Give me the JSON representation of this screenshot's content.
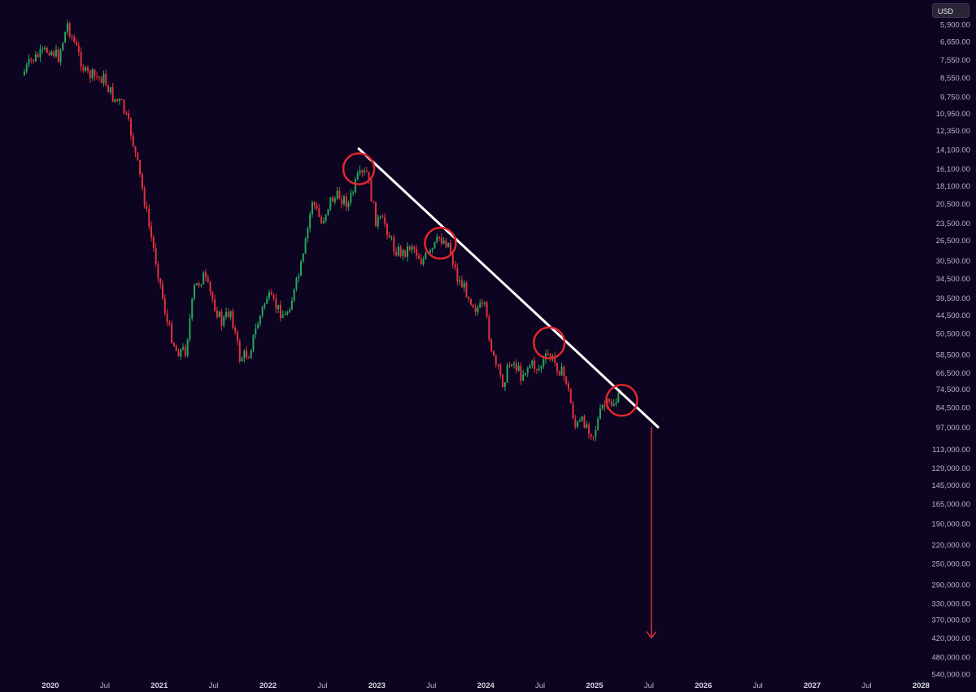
{
  "currency": "USD",
  "chart_data": {
    "type": "candlestick",
    "y_scale": "log",
    "y_inverted": true,
    "y_ticks": [
      "5,900.00",
      "6,650.00",
      "7,550.00",
      "8,550.00",
      "9,750.00",
      "10,950.00",
      "12,350.00",
      "14,100.00",
      "16,100.00",
      "18,100.00",
      "20,500.00",
      "23,500.00",
      "26,500.00",
      "30,500.00",
      "34,500.00",
      "39,500.00",
      "44,500.00",
      "50,500.00",
      "58,500.00",
      "66,500.00",
      "74,500.00",
      "84,500.00",
      "97,000.00",
      "113,000.00",
      "129,000.00",
      "145,000.00",
      "165,000.00",
      "190,000.00",
      "220,000.00",
      "250,000.00",
      "290,000.00",
      "330,000.00",
      "370,000.00",
      "420,000.00",
      "480,000.00",
      "540,000.00"
    ],
    "x_ticks": [
      {
        "label": "2020",
        "date": "2020-01",
        "major": true
      },
      {
        "label": "Jul",
        "date": "2020-07",
        "major": false
      },
      {
        "label": "2021",
        "date": "2021-01",
        "major": true
      },
      {
        "label": "Jul",
        "date": "2021-07",
        "major": false
      },
      {
        "label": "2022",
        "date": "2022-01",
        "major": true
      },
      {
        "label": "Jul",
        "date": "2022-07",
        "major": false
      },
      {
        "label": "2023",
        "date": "2023-01",
        "major": true
      },
      {
        "label": "Jul",
        "date": "2023-07",
        "major": false
      },
      {
        "label": "2024",
        "date": "2024-01",
        "major": true
      },
      {
        "label": "Jul",
        "date": "2024-07",
        "major": false
      },
      {
        "label": "2025",
        "date": "2025-01",
        "major": true
      },
      {
        "label": "Jul",
        "date": "2025-07",
        "major": false
      },
      {
        "label": "2026",
        "date": "2026-01",
        "major": true
      },
      {
        "label": "Jul",
        "date": "2026-07",
        "major": false
      },
      {
        "label": "2027",
        "date": "2027-01",
        "major": true
      },
      {
        "label": "Jul",
        "date": "2027-07",
        "major": false
      },
      {
        "label": "2028",
        "date": "2028-01",
        "major": true
      }
    ],
    "price_path": [
      {
        "date": "2019-10",
        "price": 8400
      },
      {
        "date": "2019-11",
        "price": 7600
      },
      {
        "date": "2019-12",
        "price": 7300
      },
      {
        "date": "2020-01",
        "price": 7000
      },
      {
        "date": "2020-02",
        "price": 7400
      },
      {
        "date": "2020-03",
        "price": 5900
      },
      {
        "date": "2020-04",
        "price": 7000
      },
      {
        "date": "2020-05",
        "price": 8300
      },
      {
        "date": "2020-06",
        "price": 8500
      },
      {
        "date": "2020-07",
        "price": 8600
      },
      {
        "date": "2020-08",
        "price": 9800
      },
      {
        "date": "2020-09",
        "price": 10300
      },
      {
        "date": "2020-10",
        "price": 12500
      },
      {
        "date": "2020-11",
        "price": 17000
      },
      {
        "date": "2020-12",
        "price": 24000
      },
      {
        "date": "2021-01",
        "price": 33000
      },
      {
        "date": "2021-02",
        "price": 47000
      },
      {
        "date": "2021-03",
        "price": 57000
      },
      {
        "date": "2021-04",
        "price": 57000
      },
      {
        "date": "2021-05",
        "price": 37000
      },
      {
        "date": "2021-06",
        "price": 34000
      },
      {
        "date": "2021-07",
        "price": 40000
      },
      {
        "date": "2021-08",
        "price": 47000
      },
      {
        "date": "2021-09",
        "price": 43000
      },
      {
        "date": "2021-10",
        "price": 60000
      },
      {
        "date": "2021-11",
        "price": 58000
      },
      {
        "date": "2021-12",
        "price": 47000
      },
      {
        "date": "2022-01",
        "price": 39000
      },
      {
        "date": "2022-02",
        "price": 42000
      },
      {
        "date": "2022-03",
        "price": 45000
      },
      {
        "date": "2022-04",
        "price": 38000
      },
      {
        "date": "2022-05",
        "price": 30000
      },
      {
        "date": "2022-06",
        "price": 20000
      },
      {
        "date": "2022-07",
        "price": 23500
      },
      {
        "date": "2022-08",
        "price": 20000
      },
      {
        "date": "2022-09",
        "price": 19500
      },
      {
        "date": "2022-10",
        "price": 20500
      },
      {
        "date": "2022-11",
        "price": 17200
      },
      {
        "date": "2022-12",
        "price": 16600
      },
      {
        "date": "2023-01",
        "price": 23000
      },
      {
        "date": "2023-02",
        "price": 23500
      },
      {
        "date": "2023-03",
        "price": 28000
      },
      {
        "date": "2023-04",
        "price": 29000
      },
      {
        "date": "2023-05",
        "price": 27200
      },
      {
        "date": "2023-06",
        "price": 30500
      },
      {
        "date": "2023-07",
        "price": 29200
      },
      {
        "date": "2023-08",
        "price": 26000
      },
      {
        "date": "2023-09",
        "price": 27000
      },
      {
        "date": "2023-10",
        "price": 34500
      },
      {
        "date": "2023-11",
        "price": 37700
      },
      {
        "date": "2023-12",
        "price": 42300
      },
      {
        "date": "2024-01",
        "price": 42600
      },
      {
        "date": "2024-02",
        "price": 61000
      },
      {
        "date": "2024-03",
        "price": 71000
      },
      {
        "date": "2024-04",
        "price": 60500
      },
      {
        "date": "2024-05",
        "price": 67500
      },
      {
        "date": "2024-06",
        "price": 62700
      },
      {
        "date": "2024-07",
        "price": 64600
      },
      {
        "date": "2024-08",
        "price": 58900
      },
      {
        "date": "2024-09",
        "price": 63300
      },
      {
        "date": "2024-10",
        "price": 70200
      },
      {
        "date": "2024-11",
        "price": 96400
      },
      {
        "date": "2024-12",
        "price": 93400
      },
      {
        "date": "2025-01",
        "price": 102000
      },
      {
        "date": "2025-02",
        "price": 84300
      },
      {
        "date": "2025-03",
        "price": 82500
      },
      {
        "date": "2025-04",
        "price": 79000
      }
    ],
    "annotations": {
      "trendline": {
        "start": {
          "date": "2022-11",
          "price": 14000
        },
        "end": {
          "date": "2025-08",
          "price": 97000
        },
        "color": "#ffffff"
      },
      "circles": [
        {
          "date": "2022-11",
          "price": 16100
        },
        {
          "date": "2023-08",
          "price": 27000
        },
        {
          "date": "2024-08",
          "price": 54000
        },
        {
          "date": "2025-04",
          "price": 80500
        }
      ],
      "arrow": {
        "start": {
          "date": "2025-07",
          "price": 97000
        },
        "end": {
          "date": "2025-07",
          "price": 420000
        },
        "color": "#d6323a"
      }
    },
    "colors": {
      "up": "#26a65b",
      "down": "#e0323c",
      "circle": "#e0262e",
      "background": "#0c0420",
      "axis_text": "#b9b4c6"
    }
  }
}
